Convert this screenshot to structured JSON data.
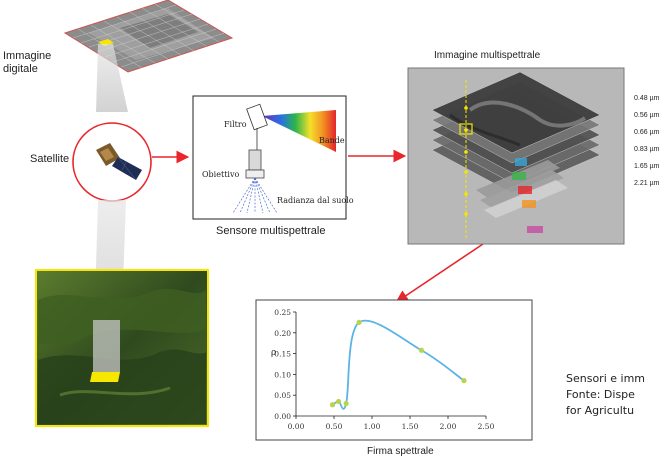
{
  "labels": {
    "digital_image": [
      "Immagine",
      "digitale"
    ],
    "satellite": "Satellite",
    "multispectral_image": "Immagine multispettrale",
    "sensor_title": "Sensore multispettrale",
    "filter": "Filtro",
    "bands": "Bande",
    "lens": "Obiettivo",
    "ground_radiance": "Radianza dal suolo",
    "spectral_signature": "Firma spettrale"
  },
  "wavelengths": [
    "0.48 µm",
    "0.56 µm",
    "0.66 µm",
    "0.83 µm",
    "1.65 µm",
    "2.21 µm"
  ],
  "caption_lines": [
    "Sensori e imm",
    "Fonte: Dispe",
    "for Agricultu"
  ],
  "colors": {
    "arrow": "#e8262b",
    "highlight_yellow": "#f6e600",
    "curve": "#5ab4e6",
    "point": "#b9d44a"
  },
  "chart_data": {
    "type": "line",
    "title": "",
    "xlabel": "",
    "ylabel": "ρ",
    "xlim": [
      0.0,
      2.5
    ],
    "ylim": [
      0.0,
      0.25
    ],
    "x_ticks": [
      "0.00",
      "0.50",
      "1.00",
      "1.50",
      "2.00",
      "2.50"
    ],
    "y_ticks": [
      "0.00",
      "0.05",
      "0.10",
      "0.15",
      "0.20",
      "0.25"
    ],
    "grid": false,
    "points": [
      {
        "x": 0.48,
        "y": 0.027
      },
      {
        "x": 0.56,
        "y": 0.035
      },
      {
        "x": 0.66,
        "y": 0.03
      },
      {
        "x": 0.83,
        "y": 0.225
      },
      {
        "x": 1.65,
        "y": 0.158
      },
      {
        "x": 2.21,
        "y": 0.085
      }
    ]
  }
}
